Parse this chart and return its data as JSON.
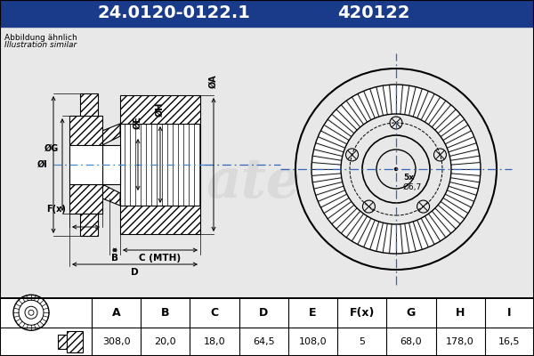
{
  "title_part": "24.0120-0122.1",
  "title_code": "420122",
  "subtitle1": "Abbildung ähnlich",
  "subtitle2": "Illustration similar",
  "header_bg": "#1a3a8a",
  "header_text_color": "#ffffff",
  "bg_color": "#d8d8d8",
  "inner_bg": "#e8e8e8",
  "table_headers": [
    "A",
    "B",
    "C",
    "D",
    "E",
    "F(x)",
    "G",
    "H",
    "I"
  ],
  "table_values": [
    "308,0",
    "20,0",
    "18,0",
    "64,5",
    "108,0",
    "5",
    "68,0",
    "178,0",
    "16,5"
  ],
  "bolt_label": "5x",
  "bolt_dia_label": "Ø6,7",
  "watermark": "ate"
}
